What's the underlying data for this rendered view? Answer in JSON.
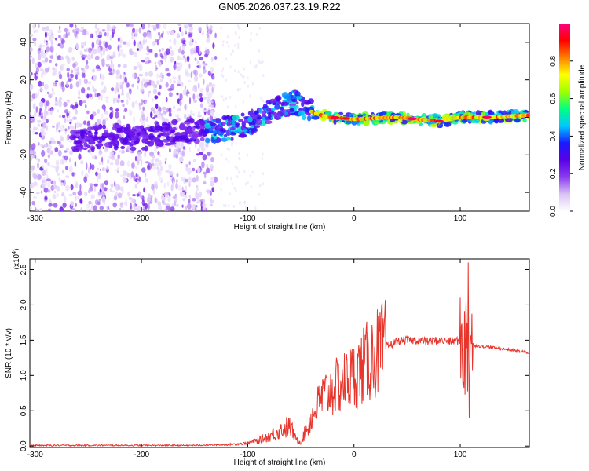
{
  "title": "GN05.2026.037.23.19.R22",
  "chart_data": [
    {
      "type": "heatmap",
      "name": "spectrogram",
      "xlabel": "Height of straight line (km)",
      "ylabel": "Frequency (Hz)",
      "xlim": [
        -305,
        165
      ],
      "ylim": [
        -50,
        50
      ],
      "x_ticks": [
        -300,
        -200,
        -100,
        0,
        100
      ],
      "y_ticks": [
        -40,
        -20,
        0,
        20,
        40
      ],
      "x_tick_labels": [
        "-300",
        "-200",
        "-100",
        "0",
        "100"
      ],
      "y_tick_labels": [
        "-40",
        "-20",
        "0",
        "20",
        "40"
      ],
      "ridge": {
        "x": [
          -260,
          -230,
          -200,
          -170,
          -140,
          -120,
          -100,
          -85,
          -70,
          -55,
          -40,
          -30,
          -20,
          0,
          40,
          80,
          100,
          120,
          165
        ],
        "freq_hz": [
          -12,
          -10,
          -11,
          -8,
          -7,
          -6,
          -4,
          2,
          5,
          8,
          3,
          1,
          0,
          -1,
          0,
          -2,
          0,
          0,
          1
        ]
      },
      "colorbar": {
        "label": "Normalized spectral amplitude",
        "range": [
          0,
          1
        ],
        "ticks": [
          0.0,
          0.2,
          0.4,
          0.6,
          0.8
        ],
        "tick_labels": [
          "0.0",
          "0.2",
          "0.4",
          "0.6",
          "0.8"
        ],
        "colormap": [
          "#ffffff",
          "#d9c2f5",
          "#8a3cf0",
          "#5a00e6",
          "#1a1aff",
          "#00c8ff",
          "#00ff80",
          "#a0ff00",
          "#ffff00",
          "#ff8000",
          "#ff0000",
          "#ff0080"
        ]
      }
    },
    {
      "type": "line",
      "name": "snr",
      "xlabel": "Height of straight line (km)",
      "ylabel": "SNR (10 * v/v)",
      "y_multiplier_label": "(x10",
      "y_multiplier_exp": "4",
      "xlim": [
        -305,
        165
      ],
      "ylim": [
        -0.02,
        2.65
      ],
      "x_ticks": [
        -300,
        -200,
        -100,
        0,
        100
      ],
      "y_ticks": [
        0.0,
        0.5,
        1.0,
        1.5,
        2.0,
        2.5
      ],
      "x_tick_labels": [
        "-300",
        "-200",
        "-100",
        "0",
        "100"
      ],
      "y_tick_labels": [
        "0.0",
        "0.5",
        "1.0",
        "1.5",
        "2.0",
        "2.5"
      ],
      "series": [
        {
          "name": "SNR",
          "color": "#e8352c",
          "x": [
            -305,
            -250,
            -200,
            -150,
            -120,
            -100,
            -90,
            -80,
            -70,
            -60,
            -55,
            -50,
            -40,
            -30,
            -20,
            -10,
            0,
            10,
            20,
            30,
            40,
            50,
            60,
            70,
            80,
            90,
            100,
            105,
            108,
            110,
            115,
            130,
            165
          ],
          "y": [
            0.01,
            0.01,
            0.01,
            0.01,
            0.02,
            0.04,
            0.08,
            0.14,
            0.22,
            0.28,
            0.1,
            0.05,
            0.4,
            0.7,
            0.8,
            0.9,
            1.0,
            1.15,
            1.3,
            1.4,
            1.48,
            1.5,
            1.5,
            1.48,
            1.5,
            1.48,
            1.5,
            1.45,
            1.0,
            1.45,
            1.42,
            1.4,
            1.32
          ]
        }
      ]
    }
  ]
}
